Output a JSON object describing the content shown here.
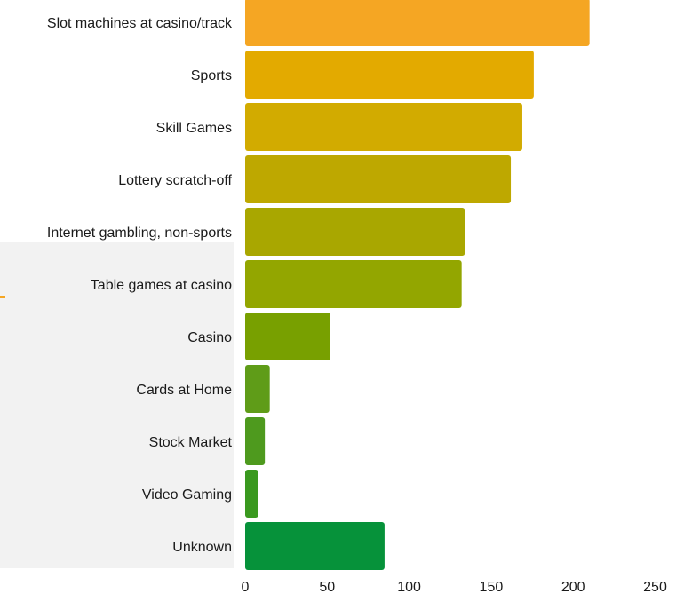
{
  "chart_data": {
    "type": "bar",
    "orientation": "horizontal",
    "categories": [
      "Slot machines at casino/track",
      "Sports",
      "Skill Games",
      "Lottery scratch-off",
      "Internet gambling, non-sports",
      "Table games at casino",
      "Casino",
      "Cards at Home",
      "Stock Market",
      "Video Gaming",
      "Unknown"
    ],
    "values": [
      210,
      176,
      169,
      162,
      134,
      132,
      52,
      15,
      12,
      8,
      85
    ],
    "colors": [
      "#f5a623",
      "#e3aa00",
      "#d2ab00",
      "#bea800",
      "#a9a700",
      "#93a600",
      "#78a000",
      "#5f9c18",
      "#4e9a1e",
      "#3a991f",
      "#06923a"
    ],
    "xticks": [
      "0",
      "50",
      "100",
      "150",
      "200",
      "250"
    ],
    "xlim": [
      0,
      260
    ],
    "title": "",
    "xlabel": "",
    "ylabel": "",
    "grid": false
  }
}
